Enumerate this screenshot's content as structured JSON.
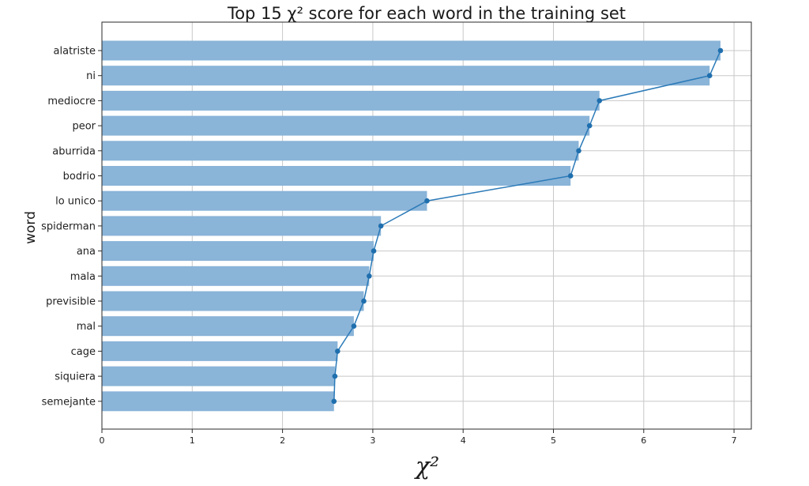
{
  "chart_data": {
    "type": "bar",
    "orientation": "horizontal",
    "title": "Top 15 χ² score for each word in the training set",
    "xlabel": "χ²",
    "ylabel": "word",
    "categories": [
      "alatriste",
      "ni",
      "mediocre",
      "peor",
      "aburrida",
      "bodrio",
      "lo unico",
      "spiderman",
      "ana",
      "mala",
      "previsible",
      "mal",
      "cage",
      "siquiera",
      "semejante"
    ],
    "values": [
      6.85,
      6.73,
      5.51,
      5.4,
      5.28,
      5.19,
      3.6,
      3.09,
      3.01,
      2.96,
      2.9,
      2.79,
      2.61,
      2.58,
      2.57
    ],
    "xlim": [
      0,
      7.2
    ],
    "xticks": [
      "0",
      "1",
      "2",
      "3",
      "4",
      "5",
      "6",
      "7"
    ],
    "grid": true,
    "overlay_line": true,
    "colors": {
      "bar": "#8ab4d8",
      "line": "#2b7ab8",
      "marker": "#1f6fae"
    }
  }
}
